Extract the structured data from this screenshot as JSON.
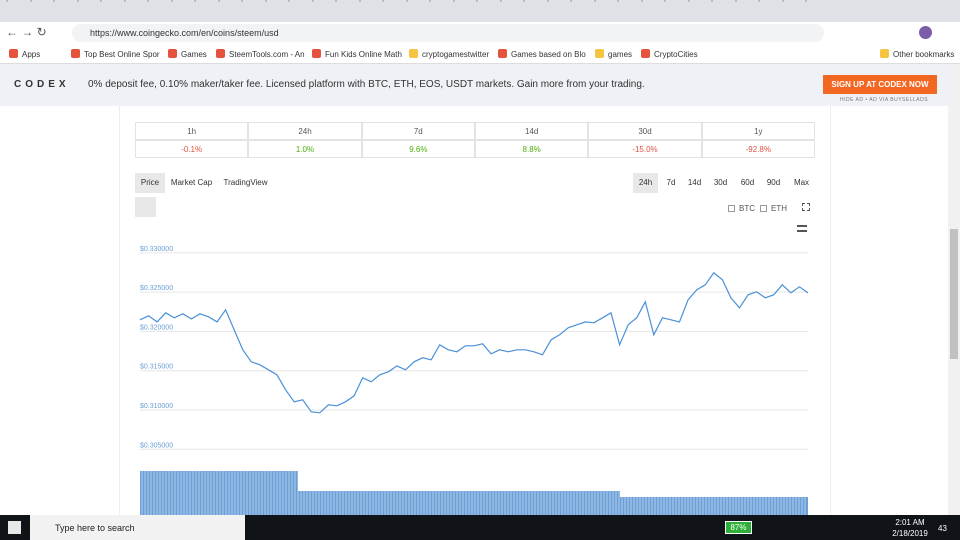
{
  "browser": {
    "url": "https://www.coingecko.com/en/coins/steem/usd",
    "bookmarks": [
      "Apps",
      "Top Best Online Spor",
      "Games",
      "SteemTools.com - An",
      "Fun Kids Online Math",
      "cryptogamestwitter",
      "Games based on Blo",
      "games",
      "CryptoCities",
      "Other bookmarks"
    ]
  },
  "banner": {
    "brand": "CODEX",
    "text": "0% deposit fee, 0.10% maker/taker fee. Licensed platform with BTC, ETH, EOS, USDT markets. Gain more from your trading.",
    "button": "SIGN UP AT CODEX NOW",
    "note": "HIDE AD • AD VIA BUYSELLADS"
  },
  "performance": {
    "headers": [
      "1h",
      "24h",
      "7d",
      "14d",
      "30d",
      "1y"
    ],
    "changes": [
      "-0.1%",
      "1.0%",
      "9.6%",
      "8.8%",
      "-15.0%",
      "-92.8%"
    ]
  },
  "chart_tabs": [
    "Price",
    "Market Cap",
    "TradingView"
  ],
  "ranges": [
    "24h",
    "7d",
    "14d",
    "30d",
    "60d",
    "90d",
    "Max"
  ],
  "compare": [
    "BTC",
    "ETH"
  ],
  "chart_data": {
    "type": "line",
    "color": "#4a90d9",
    "grid": true,
    "ylim": [
      0.303,
      0.331
    ],
    "yticks": [
      {
        "value": 0.305,
        "label": "$0.305000"
      },
      {
        "value": 0.31,
        "label": "$0.310000"
      },
      {
        "value": 0.315,
        "label": "$0.315000"
      },
      {
        "value": 0.32,
        "label": "$0.320000"
      },
      {
        "value": 0.325,
        "label": "$0.325000"
      },
      {
        "value": 0.33,
        "label": "$0.330000"
      }
    ],
    "values": [
      0.32097,
      0.32148,
      0.32071,
      0.32186,
      0.32122,
      0.32173,
      0.32109,
      0.32173,
      0.32135,
      0.32071,
      0.32224,
      0.31969,
      0.31715,
      0.31562,
      0.31524,
      0.31461,
      0.31397,
      0.31206,
      0.31053,
      0.31079,
      0.30926,
      0.30913,
      0.31015,
      0.31003,
      0.31053,
      0.3113,
      0.31359,
      0.31308,
      0.31397,
      0.31435,
      0.31511,
      0.31461,
      0.31562,
      0.31613,
      0.31588,
      0.31779,
      0.31715,
      0.3169,
      0.31766,
      0.31766,
      0.31791,
      0.31664,
      0.31715,
      0.3169,
      0.31715,
      0.31715,
      0.3169,
      0.31651,
      0.31842,
      0.31906,
      0.31995,
      0.32033,
      0.32071,
      0.32059,
      0.32122,
      0.32186,
      0.31779,
      0.32033,
      0.32122,
      0.32326,
      0.31906,
      0.32122,
      0.32097,
      0.32071,
      0.32351,
      0.32478,
      0.32542,
      0.32695,
      0.32606,
      0.32377,
      0.32249,
      0.32415,
      0.32453,
      0.32377,
      0.32415,
      0.32542,
      0.3244,
      0.32517,
      0.3244
    ]
  },
  "taskbar": {
    "search": "Type here to search",
    "battery": "87%",
    "time": "2:01 AM",
    "date": "2/18/2019",
    "notifications": "43"
  }
}
